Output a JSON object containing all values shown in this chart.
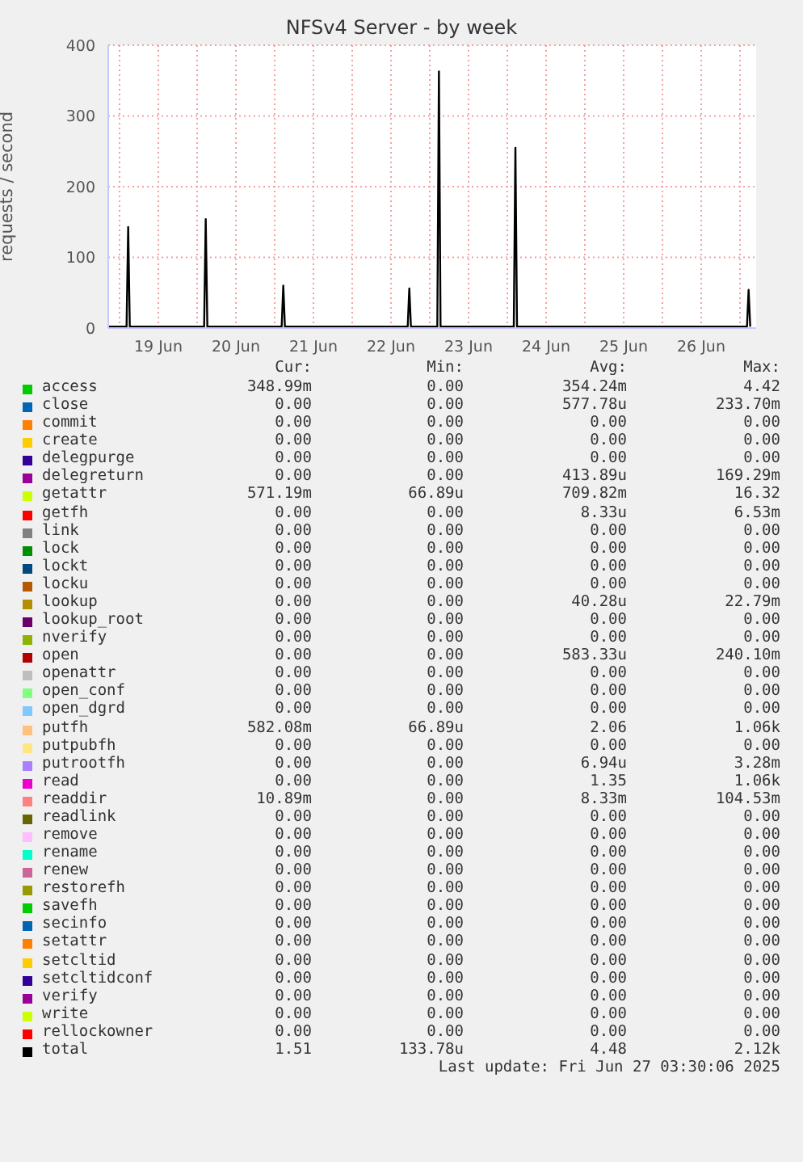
{
  "chart_data": {
    "type": "line",
    "title": "NFSv4 Server - by week",
    "ylabel": "requests / second",
    "xlim": [
      "2025-06-18T20:30",
      "2025-06-27T05:00"
    ],
    "xticks": [
      {
        "value": "2025-06-19T00:00",
        "label": null
      },
      {
        "value": "2025-06-19T12:00",
        "label": "19 Jun"
      },
      {
        "value": "2025-06-20T00:00",
        "label": null
      },
      {
        "value": "2025-06-20T12:00",
        "label": "20 Jun"
      },
      {
        "value": "2025-06-21T00:00",
        "label": null
      },
      {
        "value": "2025-06-21T12:00",
        "label": "21 Jun"
      },
      {
        "value": "2025-06-22T00:00",
        "label": null
      },
      {
        "value": "2025-06-22T12:00",
        "label": "22 Jun"
      },
      {
        "value": "2025-06-23T00:00",
        "label": null
      },
      {
        "value": "2025-06-23T12:00",
        "label": "23 Jun"
      },
      {
        "value": "2025-06-24T00:00",
        "label": null
      },
      {
        "value": "2025-06-24T12:00",
        "label": "24 Jun"
      },
      {
        "value": "2025-06-25T00:00",
        "label": null
      },
      {
        "value": "2025-06-25T12:00",
        "label": "25 Jun"
      },
      {
        "value": "2025-06-26T00:00",
        "label": null
      },
      {
        "value": "2025-06-26T12:00",
        "label": "26 Jun"
      },
      {
        "value": "2025-06-27T00:00",
        "label": null
      }
    ],
    "ylim": [
      0,
      400
    ],
    "yticks": [
      0,
      100,
      200,
      300,
      400
    ],
    "grid": true,
    "legend": "bottom",
    "marker": "none",
    "line_style": "solid",
    "series": [
      {
        "name": "access",
        "color": "#00cc00"
      },
      {
        "name": "close",
        "color": "#0066b3"
      },
      {
        "name": "commit",
        "color": "#ff8000"
      },
      {
        "name": "create",
        "color": "#ffcc00"
      },
      {
        "name": "delegpurge",
        "color": "#330099"
      },
      {
        "name": "delegreturn",
        "color": "#990099"
      },
      {
        "name": "getattr",
        "color": "#ccff00"
      },
      {
        "name": "getfh",
        "color": "#ff0000"
      },
      {
        "name": "link",
        "color": "#808080"
      },
      {
        "name": "lock",
        "color": "#008f00"
      },
      {
        "name": "lockt",
        "color": "#00487d"
      },
      {
        "name": "locku",
        "color": "#b35a00"
      },
      {
        "name": "lookup",
        "color": "#b38f00"
      },
      {
        "name": "lookup_root",
        "color": "#6b006b"
      },
      {
        "name": "nverify",
        "color": "#8fb300"
      },
      {
        "name": "open",
        "color": "#b30000"
      },
      {
        "name": "openattr",
        "color": "#bebebe"
      },
      {
        "name": "open_conf",
        "color": "#80ff80"
      },
      {
        "name": "open_dgrd",
        "color": "#80c9ff"
      },
      {
        "name": "putfh",
        "color": "#ffc080"
      },
      {
        "name": "putpubfh",
        "color": "#ffe680"
      },
      {
        "name": "putrootfh",
        "color": "#aa80ff"
      },
      {
        "name": "read",
        "color": "#ee00cc"
      },
      {
        "name": "readdir",
        "color": "#ff8080"
      },
      {
        "name": "readlink",
        "color": "#666600"
      },
      {
        "name": "remove",
        "color": "#ffbfff"
      },
      {
        "name": "rename",
        "color": "#00ffcc"
      },
      {
        "name": "renew",
        "color": "#cc6699"
      },
      {
        "name": "restorefh",
        "color": "#999900"
      },
      {
        "name": "savefh",
        "color": "#00cc00"
      },
      {
        "name": "secinfo",
        "color": "#0066b3"
      },
      {
        "name": "setattr",
        "color": "#ff8000"
      },
      {
        "name": "setcltid",
        "color": "#ffcc00"
      },
      {
        "name": "setcltidconf",
        "color": "#330099"
      },
      {
        "name": "verify",
        "color": "#990099"
      },
      {
        "name": "write",
        "color": "#ccff00"
      },
      {
        "name": "rellockowner",
        "color": "#ff0000"
      },
      {
        "name": "total",
        "color": "#000000",
        "x": [
          "2025-06-18T20:30",
          "2025-06-19T02:10",
          "2025-06-19T02:40",
          "2025-06-19T03:10",
          "2025-06-19T12:00",
          "2025-06-20T02:10",
          "2025-06-20T02:40",
          "2025-06-20T03:10",
          "2025-06-20T12:00",
          "2025-06-21T02:10",
          "2025-06-21T02:40",
          "2025-06-21T03:10",
          "2025-06-21T12:00",
          "2025-06-22T17:10",
          "2025-06-22T17:40",
          "2025-06-22T18:10",
          "2025-06-23T02:20",
          "2025-06-23T02:50",
          "2025-06-23T03:20",
          "2025-06-24T02:00",
          "2025-06-24T02:30",
          "2025-06-24T03:00",
          "2025-06-25T12:00",
          "2025-06-26T12:00",
          "2025-06-27T02:10",
          "2025-06-27T02:40",
          "2025-06-27T03:10"
        ],
        "values": [
          2,
          2,
          143,
          2,
          2,
          2,
          154,
          2,
          2,
          2,
          60,
          2,
          2,
          2,
          56,
          2,
          2,
          363,
          2,
          2,
          255,
          2,
          2,
          2,
          2,
          54,
          2
        ]
      }
    ],
    "annotations": [
      "Cur:",
      "Min:",
      "Avg:",
      "Max:",
      "348.99m",
      "0.00",
      "354.24m",
      "4.42",
      "0.00",
      "0.00",
      "577.78u",
      "233.70m",
      "0.00",
      "0.00",
      "0.00",
      "0.00",
      "0.00",
      "0.00",
      "0.00",
      "0.00",
      "0.00",
      "0.00",
      "0.00",
      "0.00",
      "0.00",
      "0.00",
      "413.89u",
      "169.29m",
      "571.19m",
      "66.89u",
      "709.82m",
      "16.32",
      "0.00",
      "0.00",
      "8.33u",
      "6.53m",
      "0.00",
      "0.00",
      "0.00",
      "0.00",
      "0.00",
      "0.00",
      "0.00",
      "0.00",
      "0.00",
      "0.00",
      "0.00",
      "0.00",
      "0.00",
      "0.00",
      "0.00",
      "0.00",
      "0.00",
      "0.00",
      "40.28u",
      "22.79m",
      "0.00",
      "0.00",
      "0.00",
      "0.00",
      "0.00",
      "0.00",
      "0.00",
      "0.00",
      "0.00",
      "0.00",
      "583.33u",
      "240.10m",
      "0.00",
      "0.00",
      "0.00",
      "0.00",
      "0.00",
      "0.00",
      "0.00",
      "0.00",
      "0.00",
      "0.00",
      "0.00",
      "0.00",
      "582.08m",
      "66.89u",
      "2.06",
      "1.06k",
      "0.00",
      "0.00",
      "0.00",
      "0.00",
      "0.00",
      "0.00",
      "6.94u",
      "3.28m",
      "0.00",
      "0.00",
      "1.35",
      "1.06k",
      "10.89m",
      "0.00",
      "8.33m",
      "104.53m",
      "0.00",
      "0.00",
      "0.00",
      "0.00",
      "0.00",
      "0.00",
      "0.00",
      "0.00",
      "0.00",
      "0.00",
      "0.00",
      "0.00",
      "0.00",
      "0.00",
      "0.00",
      "0.00",
      "0.00",
      "0.00",
      "0.00",
      "0.00",
      "0.00",
      "0.00",
      "0.00",
      "0.00",
      "0.00",
      "0.00",
      "0.00",
      "0.00",
      "0.00",
      "0.00",
      "0.00",
      "0.00",
      "0.00",
      "0.00",
      "0.00",
      "0.00",
      "0.00",
      "0.00",
      "0.00",
      "0.00",
      "0.00",
      "0.00",
      "0.00",
      "0.00",
      "0.00",
      "0.00",
      "0.00",
      "0.00",
      "0.00",
      "0.00",
      "0.00",
      "0.00",
      "1.51",
      "133.78u",
      "4.48",
      "2.12k",
      "Last update: Fri Jun 27 03:30:06 2025"
    ]
  }
}
